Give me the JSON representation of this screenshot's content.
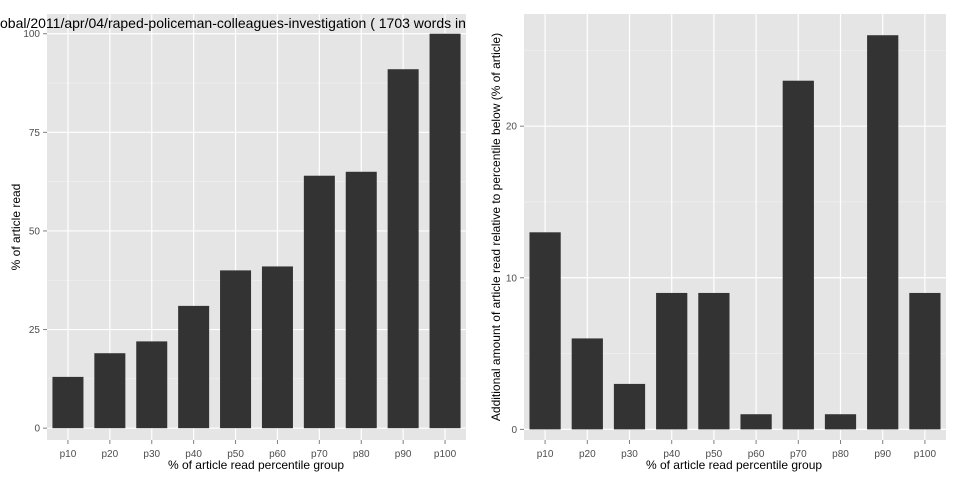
{
  "chart_data": [
    {
      "type": "bar",
      "title": "obal/2011/apr/04/raped-policeman-colleagues-investigation ( 1703 words in",
      "xlabel": "% of article read percentile group",
      "ylabel": "% of article read",
      "categories": [
        "p10",
        "p20",
        "p30",
        "p40",
        "p50",
        "p60",
        "p70",
        "p80",
        "p90",
        "p100"
      ],
      "values": [
        13,
        19,
        22,
        31,
        40,
        41,
        64,
        65,
        91,
        100
      ],
      "ylim": [
        -3,
        105
      ],
      "yticks": [
        0,
        25,
        50,
        75,
        100
      ],
      "grid": true,
      "colors": {
        "panel": "#e5e5e5",
        "bar": "#333333",
        "grid_major": "#ffffff",
        "grid_minor": "#f2f2f2"
      }
    },
    {
      "type": "bar",
      "title": "",
      "xlabel": "% of article read percentile group",
      "ylabel": "Additional amount of article read relative to percentile below (% of article)",
      "categories": [
        "p10",
        "p20",
        "p30",
        "p40",
        "p50",
        "p60",
        "p70",
        "p80",
        "p90",
        "p100"
      ],
      "values": [
        13,
        6,
        3,
        9,
        9,
        1,
        23,
        1,
        26,
        9
      ],
      "ylim": [
        -0.7,
        27.4
      ],
      "yticks": [
        0,
        10,
        20
      ],
      "grid": true,
      "colors": {
        "panel": "#e5e5e5",
        "bar": "#333333",
        "grid_major": "#ffffff",
        "grid_minor": "#f2f2f2"
      }
    }
  ]
}
